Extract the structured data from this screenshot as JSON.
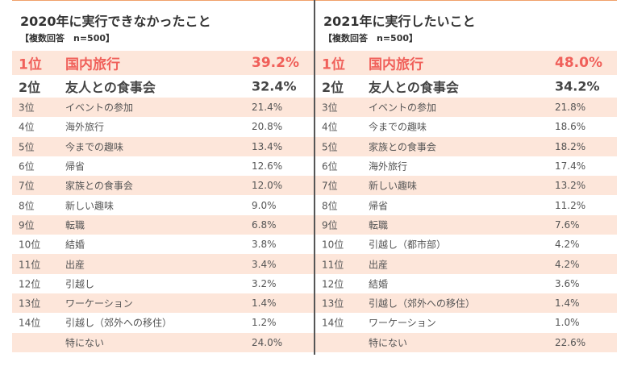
{
  "left": {
    "title": "2020年に実行できなかったこと",
    "subtitle": "【複数回答　n=500】",
    "rows": [
      {
        "rank": "1位",
        "item": "国内旅行",
        "pct": "39.2%"
      },
      {
        "rank": "2位",
        "item": "友人との食事会",
        "pct": "32.4%"
      },
      {
        "rank": "3位",
        "item": "イベントの参加",
        "pct": "21.4%"
      },
      {
        "rank": "4位",
        "item": "海外旅行",
        "pct": "20.8%"
      },
      {
        "rank": "5位",
        "item": "今までの趣味",
        "pct": "13.4%"
      },
      {
        "rank": "6位",
        "item": "帰省",
        "pct": "12.6%"
      },
      {
        "rank": "7位",
        "item": "家族との食事会",
        "pct": "12.0%"
      },
      {
        "rank": "8位",
        "item": "新しい趣味",
        "pct": "9.0%"
      },
      {
        "rank": "9位",
        "item": "転職",
        "pct": "6.8%"
      },
      {
        "rank": "10位",
        "item": "結婚",
        "pct": "3.8%"
      },
      {
        "rank": "11位",
        "item": "出産",
        "pct": "3.4%"
      },
      {
        "rank": "12位",
        "item": "引越し",
        "pct": "3.2%"
      },
      {
        "rank": "13位",
        "item": "ワーケーション",
        "pct": "1.4%"
      },
      {
        "rank": "14位",
        "item": "引越し（郊外への移住）",
        "pct": "1.2%"
      },
      {
        "rank": "",
        "item": "特にない",
        "pct": "24.0%"
      }
    ]
  },
  "right": {
    "title": "2021年に実行したいこと",
    "subtitle": "【複数回答　n=500】",
    "rows": [
      {
        "rank": "1位",
        "item": "国内旅行",
        "pct": "48.0%"
      },
      {
        "rank": "2位",
        "item": "友人との食事会",
        "pct": "34.2%"
      },
      {
        "rank": "3位",
        "item": "イベントの参加",
        "pct": "21.8%"
      },
      {
        "rank": "4位",
        "item": "今までの趣味",
        "pct": "18.6%"
      },
      {
        "rank": "5位",
        "item": "家族との食事会",
        "pct": "18.2%"
      },
      {
        "rank": "6位",
        "item": "海外旅行",
        "pct": "17.4%"
      },
      {
        "rank": "7位",
        "item": "新しい趣味",
        "pct": "13.2%"
      },
      {
        "rank": "8位",
        "item": "帰省",
        "pct": "11.2%"
      },
      {
        "rank": "9位",
        "item": "転職",
        "pct": "7.6%"
      },
      {
        "rank": "10位",
        "item": "引越し（都市部）",
        "pct": "4.2%"
      },
      {
        "rank": "11位",
        "item": "出産",
        "pct": "4.2%"
      },
      {
        "rank": "12位",
        "item": "結婚",
        "pct": "3.6%"
      },
      {
        "rank": "13位",
        "item": "引越し（郊外への移住）",
        "pct": "1.4%"
      },
      {
        "rank": "14位",
        "item": "ワーケーション",
        "pct": "1.0%"
      },
      {
        "rank": "",
        "item": "特にない",
        "pct": "22.6%"
      }
    ]
  },
  "colors": {
    "highlight_text": "#f0605a",
    "shade": "#fde6da",
    "accent_line": "#f0a16a",
    "divider": "#555555"
  }
}
